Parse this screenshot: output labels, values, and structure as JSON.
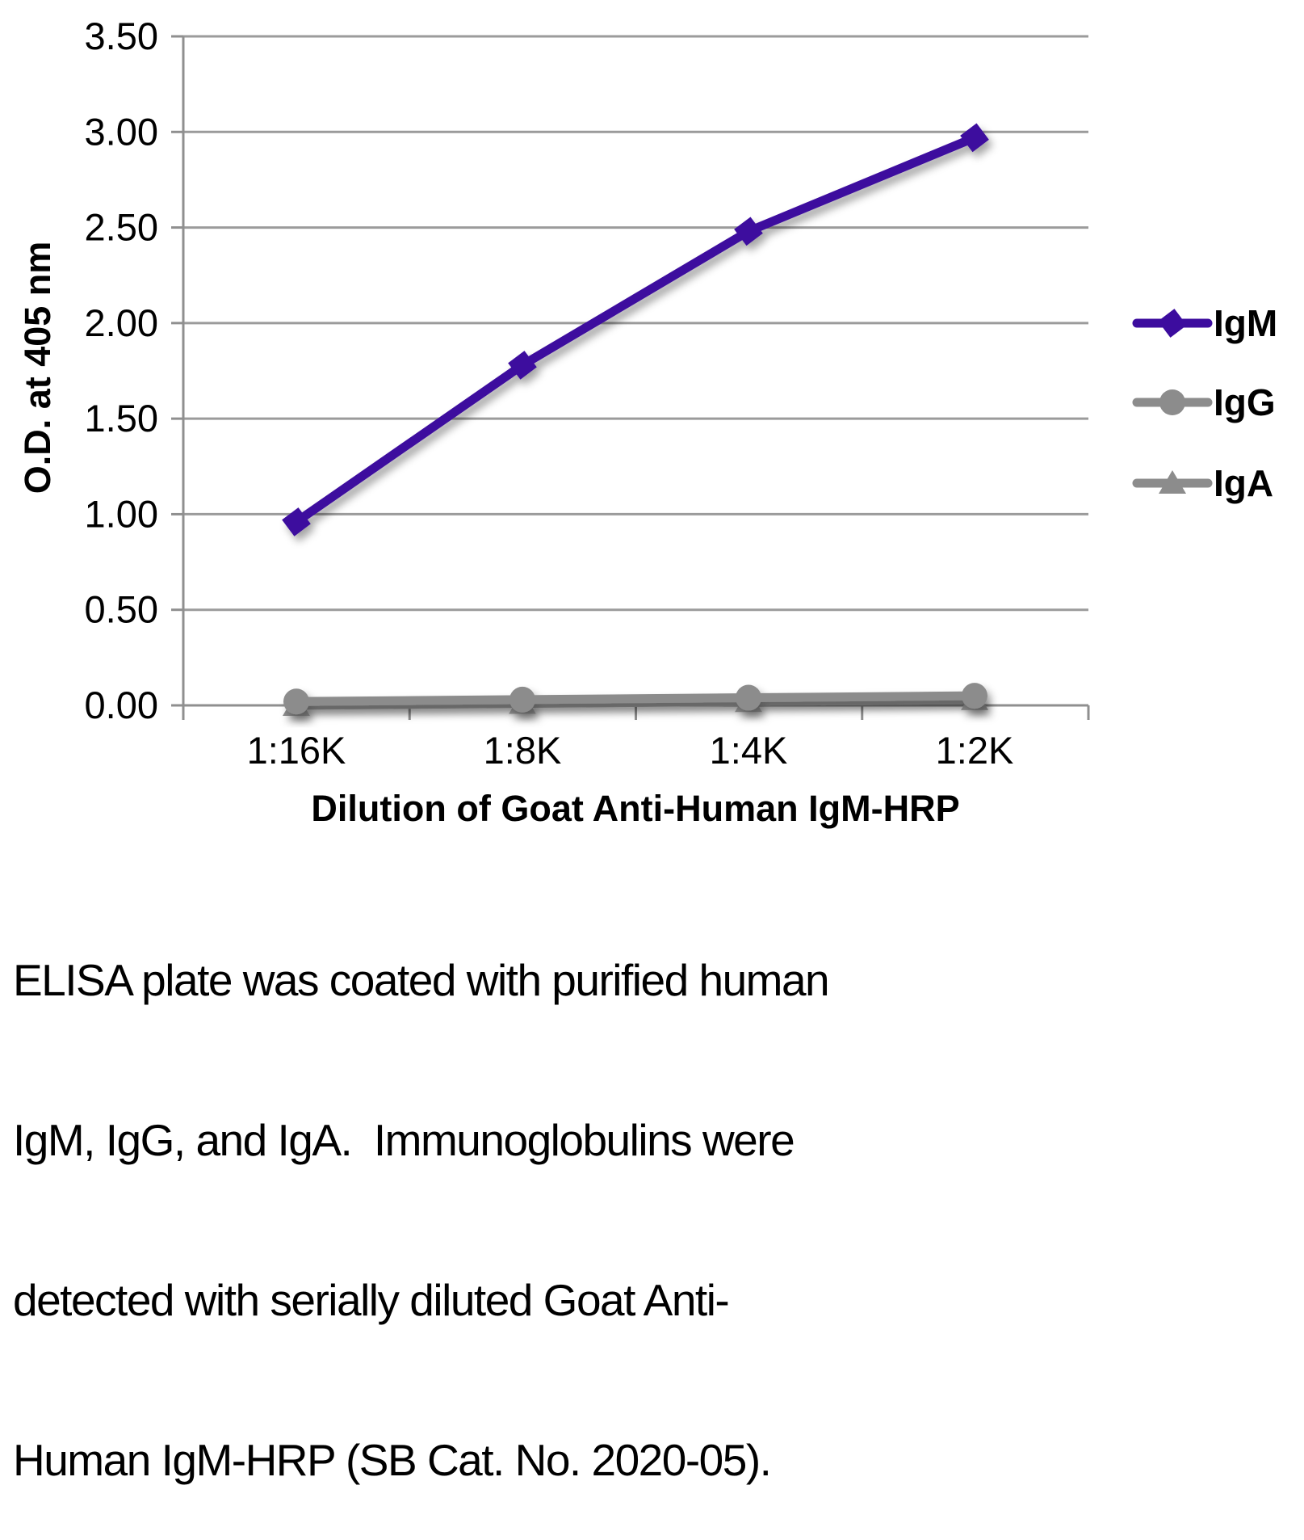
{
  "chart_data": {
    "type": "line",
    "title": "",
    "xlabel": "Dilution of Goat Anti-Human IgM-HRP",
    "ylabel": "O.D. at 405 nm",
    "categories": [
      "1:16K",
      "1:8K",
      "1:4K",
      "1:2K"
    ],
    "series": [
      {
        "name": "IgM",
        "marker": "diamond",
        "color": "#3C0C9E",
        "values": [
          0.96,
          1.78,
          2.48,
          2.97
        ]
      },
      {
        "name": "IgG",
        "marker": "circle",
        "color": "#8C8C8C",
        "values": [
          0.02,
          0.03,
          0.04,
          0.05
        ]
      },
      {
        "name": "IgA",
        "marker": "triangle",
        "color": "#8C8C8C",
        "values": [
          0.0,
          0.01,
          0.02,
          0.03
        ]
      }
    ],
    "ylim": [
      0,
      3.5
    ],
    "ytick_step": 0.5,
    "ytick_labels": [
      "0.00",
      "0.50",
      "1.00",
      "1.50",
      "2.00",
      "2.50",
      "3.00",
      "3.50"
    ],
    "grid": true,
    "legend_position": "right",
    "legend_entries": [
      "IgM",
      "IgG",
      "IgA"
    ]
  },
  "colors": {
    "accent_purple": "#3C0C9E",
    "series_gray": "#8C8C8C",
    "gridline": "#9B9B9B",
    "axis": "#8F8F8F",
    "text": "#000000",
    "background": "#FFFFFF"
  },
  "caption": {
    "lines": [
      "ELISA plate was coated with purified human",
      "IgM, IgG, and IgA.  Immunoglobulins were",
      "detected with serially diluted Goat Anti-",
      "Human IgM-HRP (SB Cat. No. 2020-05)."
    ]
  }
}
